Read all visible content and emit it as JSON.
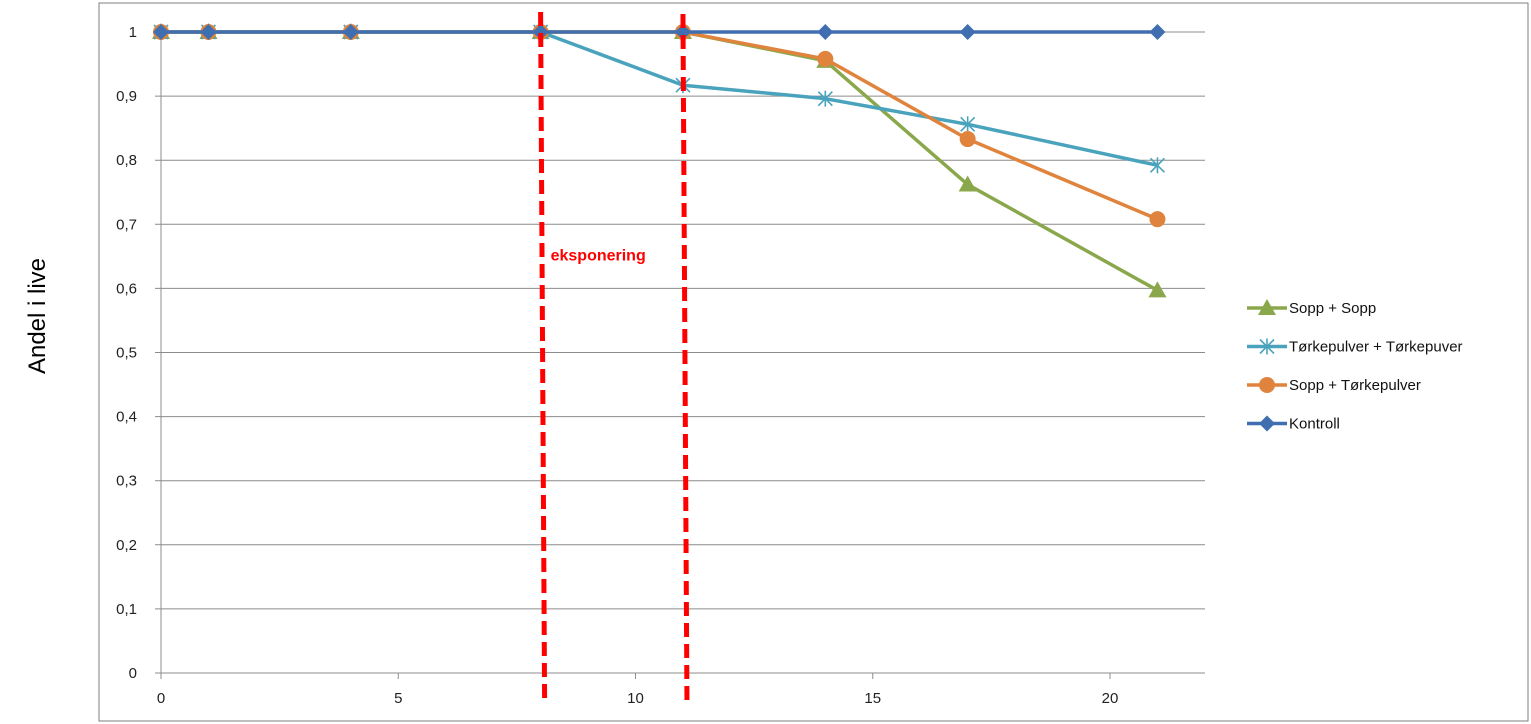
{
  "chart_data": {
    "type": "line",
    "ylabel": "Andel i live",
    "xlabel": "",
    "title": "",
    "xlim": [
      0,
      22
    ],
    "ylim": [
      0,
      1
    ],
    "x_ticks": [
      0,
      5,
      10,
      15,
      20
    ],
    "y_ticks": [
      0,
      0.1,
      0.2,
      0.3,
      0.4,
      0.5,
      0.6,
      0.7,
      0.8,
      0.9,
      1
    ],
    "y_tick_labels": [
      "0",
      "0,1",
      "0,2",
      "0,3",
      "0,4",
      "0,5",
      "0,6",
      "0,7",
      "0,8",
      "0,9",
      "1"
    ],
    "grid": "horizontal",
    "legend_position": "right",
    "series": [
      {
        "name": "Sopp + Sopp",
        "color": "#8aa84b",
        "marker": "triangle",
        "x": [
          0,
          1,
          4,
          8,
          11,
          14,
          17,
          21
        ],
        "y": [
          1,
          1,
          1,
          1,
          1,
          0.955,
          0.762,
          0.597
        ]
      },
      {
        "name": "Tørkepulver + Tørkepuver",
        "color": "#4aa3bd",
        "marker": "star",
        "x": [
          0,
          1,
          4,
          8,
          11,
          14,
          17,
          21
        ],
        "y": [
          1,
          1,
          1,
          1,
          0.917,
          0.896,
          0.856,
          0.792
        ]
      },
      {
        "name": "Sopp + Tørkepulver",
        "color": "#e0843d",
        "marker": "circle",
        "x": [
          0,
          1,
          4,
          8,
          11,
          14,
          17,
          21
        ],
        "y": [
          1,
          1,
          1,
          1,
          1,
          0.958,
          0.833,
          0.708
        ]
      },
      {
        "name": "Kontroll",
        "color": "#3f6fb0",
        "marker": "diamond",
        "x": [
          0,
          1,
          4,
          8,
          11,
          14,
          17,
          21
        ],
        "y": [
          1,
          1,
          1,
          1,
          1,
          1,
          1,
          1
        ]
      }
    ],
    "annotations": [
      {
        "type": "vline",
        "x": 8,
        "color": "#ff0000",
        "style": "dashed"
      },
      {
        "type": "vline",
        "x": 11,
        "color": "#ff0000",
        "style": "dashed"
      },
      {
        "type": "text",
        "text": "eksponering",
        "color": "#ff0000",
        "x": 8,
        "y": 0.7
      }
    ]
  }
}
